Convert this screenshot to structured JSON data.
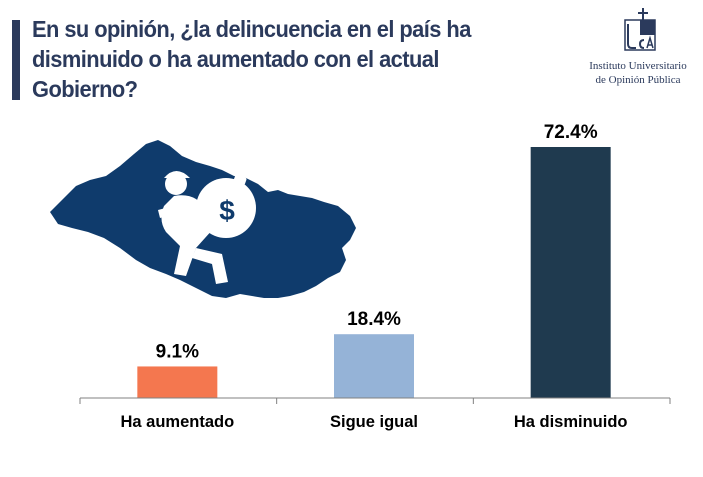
{
  "header": {
    "title": "En su opinión, ¿la delincuencia en el país ha disminuido o ha aumentado con el actual Gobierno?"
  },
  "logo": {
    "line1": "Instituto Universitario",
    "line2": "de Opinión Pública"
  },
  "colors": {
    "title": "#2b3a5c",
    "map": "#0f3b6c",
    "axis": "#808080"
  },
  "chart_data": {
    "type": "bar",
    "title": "En su opinión, ¿la delincuencia en el país ha disminuido o ha aumentado con el actual Gobierno?",
    "categories": [
      "Ha aumentado",
      "Sigue igual",
      "Ha disminuido"
    ],
    "values": [
      9.1,
      18.4,
      72.4
    ],
    "value_labels": [
      "9.1%",
      "18.4%",
      "72.4%"
    ],
    "colors": [
      "#f4774f",
      "#95b3d7",
      "#1f3a4f"
    ],
    "xlabel": "",
    "ylabel": "",
    "ylim": [
      0,
      72.4
    ],
    "grid": false,
    "legend": "none"
  }
}
